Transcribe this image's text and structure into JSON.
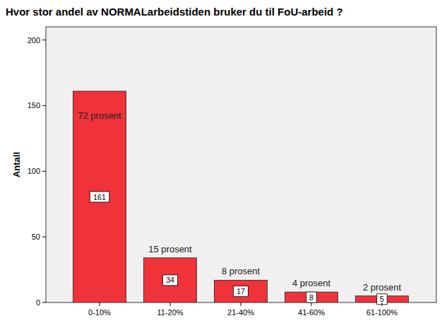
{
  "chart_data": {
    "type": "bar",
    "title": "Hvor stor andel av NORMALarbeidstiden bruker du til FoU-arbeid ?",
    "y_label": "Antall",
    "categories": [
      "0-10%",
      "11-20%",
      "21-40%",
      "41-60%",
      "61-100%"
    ],
    "values": [
      161,
      34,
      17,
      8,
      5
    ],
    "annotations": [
      "72 prosent",
      "15 prosent",
      "8 prosent",
      "4 prosent",
      "2 prosent"
    ],
    "color": "#f0323a",
    "ylim": [
      0,
      210
    ],
    "yticks": [
      0,
      50,
      100,
      150,
      200
    ],
    "grid": false,
    "data_labels": true
  }
}
